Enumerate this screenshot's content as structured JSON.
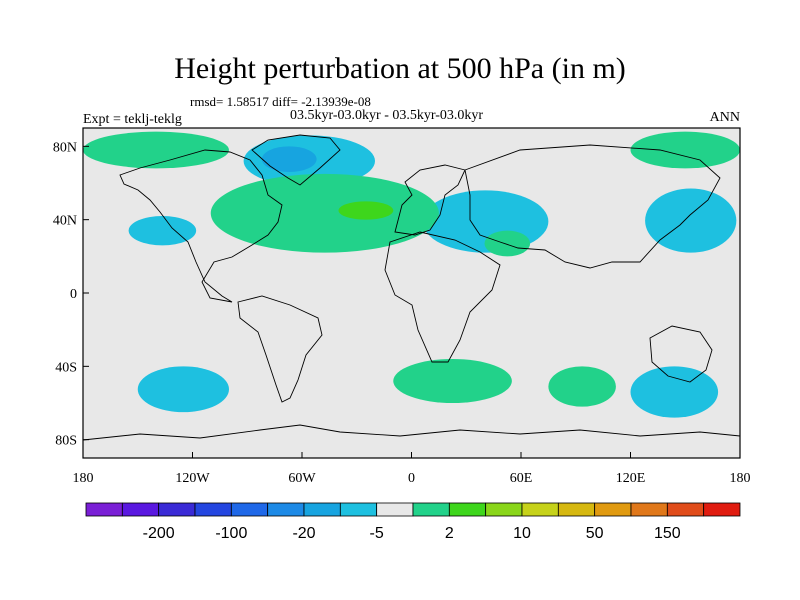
{
  "title": "Height perturbation at 500 hPa (in m)",
  "stats": "rmsd= 1.58517 diff= -2.13939e-08",
  "subtitle": "03.5kyr-03.0kyr - 03.5kyr-03.0kyr",
  "left_label": "Expt = teklj-teklg",
  "right_label": "ANN",
  "map": {
    "projection": "cylindrical equidistant",
    "lon_range": [
      -180,
      180
    ],
    "lat_range": [
      -90,
      90
    ],
    "x_ticks": [
      {
        "value": -180,
        "label": "180"
      },
      {
        "value": -120,
        "label": "120W"
      },
      {
        "value": -60,
        "label": "60W"
      },
      {
        "value": 0,
        "label": "0"
      },
      {
        "value": 60,
        "label": "60E"
      },
      {
        "value": 120,
        "label": "120E"
      },
      {
        "value": 180,
        "label": "180"
      }
    ],
    "y_ticks": [
      {
        "value": 80,
        "label": "80N"
      },
      {
        "value": 40,
        "label": "40N"
      },
      {
        "value": 0,
        "label": "0"
      },
      {
        "value": -40,
        "label": "40S"
      },
      {
        "value": -80,
        "label": "80S"
      }
    ],
    "background_color": "#e8e8e8",
    "coast_color": "#000000"
  },
  "colorbar": {
    "colors": [
      "#7a1fd6",
      "#5a18e0",
      "#3a2ad6",
      "#2446e0",
      "#1f68e8",
      "#1d8ae6",
      "#17a4e0",
      "#1ec0e0",
      "#e8e8e8",
      "#22d28a",
      "#3ed61c",
      "#8ad61a",
      "#c6d21a",
      "#d6b810",
      "#e09a10",
      "#e0781a",
      "#e04c1a",
      "#e01c10"
    ],
    "labels": [
      {
        "after_index": 1,
        "text": "-200"
      },
      {
        "after_index": 3,
        "text": "-100"
      },
      {
        "after_index": 5,
        "text": "-20"
      },
      {
        "after_index": 7,
        "text": "-5"
      },
      {
        "after_index": 9,
        "text": "2"
      },
      {
        "after_index": 11,
        "text": "10"
      },
      {
        "after_index": 13,
        "text": "50"
      },
      {
        "after_index": 15,
        "text": "150"
      }
    ]
  },
  "fields": [
    {
      "color": "#1ec0e0",
      "level": "-5 to -2",
      "region": "Greenland / Arctic",
      "lon": [
        -92,
        -20
      ],
      "lat": [
        58,
        86
      ]
    },
    {
      "color": "#17a4e0",
      "level": "-20 to -5",
      "region": "Greenland core",
      "lon": [
        -82,
        -52
      ],
      "lat": [
        66,
        80
      ]
    },
    {
      "color": "#1ec0e0",
      "level": "-5 to -2",
      "region": "Europe / Mediterranean",
      "lon": [
        6,
        75
      ],
      "lat": [
        22,
        56
      ]
    },
    {
      "color": "#1ec0e0",
      "level": "-5 to -2",
      "region": "NE Pacific",
      "lon": [
        -155,
        -118
      ],
      "lat": [
        26,
        42
      ]
    },
    {
      "color": "#1ec0e0",
      "level": "-5 to -2",
      "region": "NW Pacific / Japan",
      "lon": [
        128,
        178
      ],
      "lat": [
        22,
        57
      ]
    },
    {
      "color": "#1ec0e0",
      "level": "-5 to -2",
      "region": "South Pacific",
      "lon": [
        -150,
        -100
      ],
      "lat": [
        -65,
        -40
      ]
    },
    {
      "color": "#1ec0e0",
      "level": "-5 to -2",
      "region": "South of Australia",
      "lon": [
        120,
        168
      ],
      "lat": [
        -68,
        -40
      ]
    },
    {
      "color": "#22d28a",
      "level": "2 to 5",
      "region": "North Atlantic",
      "lon": [
        -110,
        15
      ],
      "lat": [
        22,
        65
      ]
    },
    {
      "color": "#3ed61c",
      "level": "5 to 10",
      "region": "North Atlantic core",
      "lon": [
        -40,
        -10
      ],
      "lat": [
        40,
        50
      ]
    },
    {
      "color": "#22d28a",
      "level": "2 to 5",
      "region": "Arctic Pacific sector",
      "lon": [
        -180,
        -100
      ],
      "lat": [
        68,
        88
      ]
    },
    {
      "color": "#22d28a",
      "level": "2 to 5",
      "region": "Siberia Arctic",
      "lon": [
        120,
        180
      ],
      "lat": [
        68,
        88
      ]
    },
    {
      "color": "#22d28a",
      "level": "2 to 5",
      "region": "Arabia",
      "lon": [
        40,
        65
      ],
      "lat": [
        20,
        34
      ]
    },
    {
      "color": "#22d28a",
      "level": "2 to 5",
      "region": "South Atlantic",
      "lon": [
        -10,
        55
      ],
      "lat": [
        -60,
        -36
      ]
    },
    {
      "color": "#22d28a",
      "level": "2 to 5",
      "region": "South Indian Ocean",
      "lon": [
        75,
        112
      ],
      "lat": [
        -62,
        -40
      ]
    }
  ]
}
